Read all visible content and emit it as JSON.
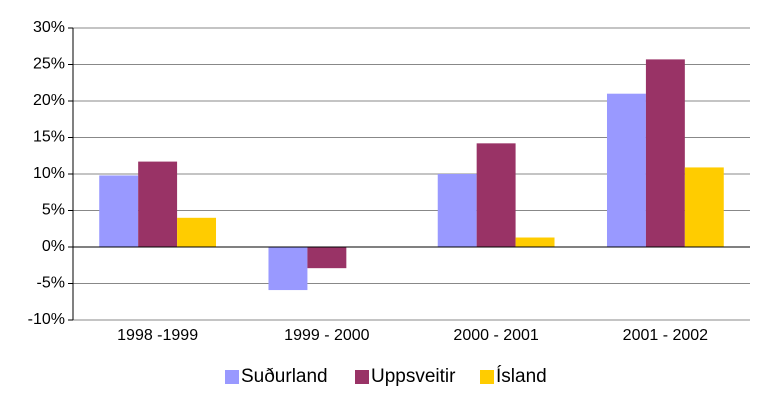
{
  "chart_data": {
    "type": "bar",
    "categories": [
      "1998 -1999",
      "1999 - 2000",
      "2000 - 2001",
      "2001 - 2002"
    ],
    "series": [
      {
        "name": "Suðurland",
        "color": "#9999ff",
        "values": [
          9.8,
          -5.9,
          10.0,
          21.0
        ]
      },
      {
        "name": "Uppsveitir",
        "color": "#993366",
        "values": [
          11.7,
          -2.9,
          14.2,
          25.7
        ]
      },
      {
        "name": "Ísland",
        "color": "#ffcc00",
        "values": [
          4.0,
          0,
          1.3,
          10.9
        ]
      }
    ],
    "ylim": [
      -10,
      30
    ],
    "yticks": [
      {
        "value": -10,
        "label": "-10%"
      },
      {
        "value": -5,
        "label": "-5%"
      },
      {
        "value": 0,
        "label": "0%"
      },
      {
        "value": 5,
        "label": "5%"
      },
      {
        "value": 10,
        "label": "10%"
      },
      {
        "value": 15,
        "label": "15%"
      },
      {
        "value": 20,
        "label": "20%"
      },
      {
        "value": 25,
        "label": "25%"
      },
      {
        "value": 30,
        "label": "30%"
      }
    ],
    "grid": true,
    "legend": "bottom"
  }
}
